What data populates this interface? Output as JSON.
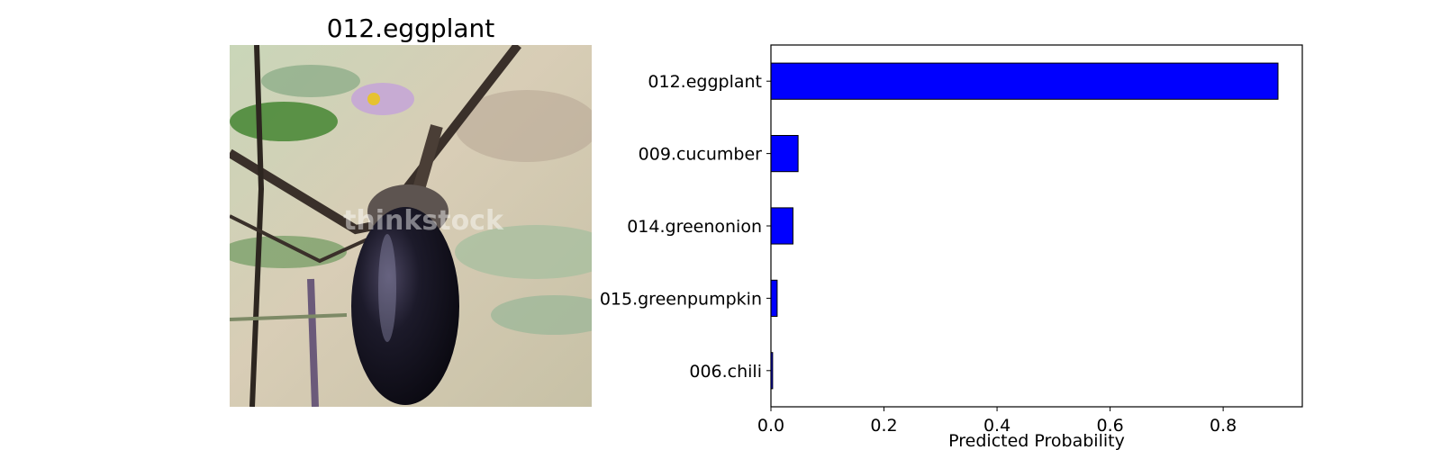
{
  "image_panel": {
    "title": "012.eggplant",
    "watermark": "thinkstock"
  },
  "chart_data": {
    "type": "bar",
    "orientation": "horizontal",
    "categories": [
      "012.eggplant",
      "009.cucumber",
      "014.greenonion",
      "015.greenpumpkin",
      "006.chili"
    ],
    "values": [
      0.897,
      0.048,
      0.039,
      0.011,
      0.003
    ],
    "xlabel": "Predicted Probability",
    "ylabel": "",
    "xlim": [
      0,
      0.94
    ],
    "xticks": [
      0.0,
      0.2,
      0.4,
      0.6,
      0.8
    ],
    "xtick_labels": [
      "0.0",
      "0.2",
      "0.4",
      "0.6",
      "0.8"
    ],
    "grid": false,
    "bar_color": "#0000ff",
    "edge_color": "#000000"
  }
}
